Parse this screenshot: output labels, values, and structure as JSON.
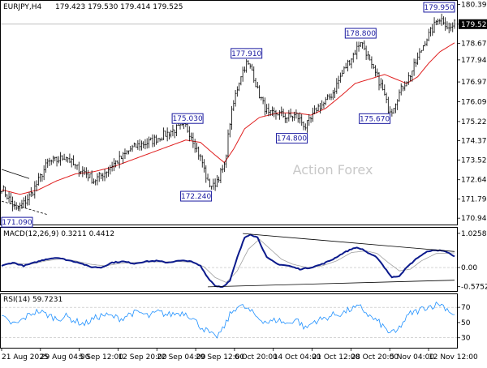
{
  "header": {
    "symbol": "EURJPY,H4",
    "ohlc": "179.423 179.530 179.414 179.525"
  },
  "watermark": "Action Forex",
  "colors": {
    "candle": "#000000",
    "ma": "#e02020",
    "macd_line": "#0b1a8c",
    "macd_signal": "#a0a0a0",
    "rsi": "#1e90ff",
    "trendline": "#000000",
    "annotation": "#1a1aa0",
    "watermark": "#c8c8c8"
  },
  "chart_data": [
    {
      "type": "candlestick",
      "panel": "price",
      "title": "EURJPY,H4",
      "y_ticks": [
        "180.395",
        "179.525",
        "178.670",
        "177.945",
        "176.970",
        "176.095",
        "175.220",
        "174.370",
        "173.520",
        "172.645",
        "171.795",
        "170.945"
      ],
      "ylim": [
        170.7,
        180.45
      ],
      "current_price": "179.525",
      "x_tick_labels": [
        "21 Aug 2025",
        "29 Aug 04:00",
        "5 Sep 12:00",
        "12 Sep 20:00",
        "22 Sep 04:00",
        "29 Sep 12:00",
        "6 Oct 20:00",
        "14 Oct 04:00",
        "21 Oct 12:00",
        "28 Oct 20:00",
        "5 Nov 04:00",
        "12 Nov 12:00"
      ],
      "price_anchors": [
        [
          0,
          172.3
        ],
        [
          4,
          171.8
        ],
        [
          8,
          171.3
        ],
        [
          12,
          171.6
        ],
        [
          16,
          172.0
        ],
        [
          20,
          172.6
        ],
        [
          25,
          173.4
        ],
        [
          30,
          173.5
        ],
        [
          35,
          173.7
        ],
        [
          40,
          173.2
        ],
        [
          45,
          173.0
        ],
        [
          50,
          172.6
        ],
        [
          55,
          172.9
        ],
        [
          60,
          173.3
        ],
        [
          65,
          173.6
        ],
        [
          70,
          174.0
        ],
        [
          75,
          174.2
        ],
        [
          80,
          174.3
        ],
        [
          85,
          174.5
        ],
        [
          90,
          174.7
        ],
        [
          95,
          174.9
        ],
        [
          100,
          175.0
        ],
        [
          103,
          174.6
        ],
        [
          106,
          174.0
        ],
        [
          109,
          173.4
        ],
        [
          112,
          172.5
        ],
        [
          115,
          172.35
        ],
        [
          118,
          172.8
        ],
        [
          121,
          173.2
        ],
        [
          124,
          175.2
        ],
        [
          127,
          176.4
        ],
        [
          130,
          177.3
        ],
        [
          133,
          177.8
        ],
        [
          136,
          177.5
        ],
        [
          139,
          176.6
        ],
        [
          142,
          176.0
        ],
        [
          145,
          175.5
        ],
        [
          150,
          175.6
        ],
        [
          155,
          175.4
        ],
        [
          160,
          175.5
        ],
        [
          165,
          175.0
        ],
        [
          168,
          175.3
        ],
        [
          171,
          175.8
        ],
        [
          175,
          176.0
        ],
        [
          180,
          176.5
        ],
        [
          184,
          177.2
        ],
        [
          188,
          177.8
        ],
        [
          192,
          178.3
        ],
        [
          195,
          178.8
        ],
        [
          198,
          178.3
        ],
        [
          201,
          177.6
        ],
        [
          204,
          177.2
        ],
        [
          207,
          176.6
        ],
        [
          210,
          175.8
        ],
        [
          212,
          175.75
        ],
        [
          215,
          176.3
        ],
        [
          218,
          176.8
        ],
        [
          222,
          177.3
        ],
        [
          226,
          178.0
        ],
        [
          230,
          178.8
        ],
        [
          234,
          179.3
        ],
        [
          237,
          179.8
        ],
        [
          240,
          179.7
        ],
        [
          243,
          179.3
        ],
        [
          246,
          179.525
        ]
      ],
      "ma_anchors": [
        [
          0,
          172.2
        ],
        [
          10,
          172.0
        ],
        [
          20,
          172.2
        ],
        [
          30,
          172.6
        ],
        [
          40,
          172.9
        ],
        [
          50,
          173.0
        ],
        [
          60,
          173.2
        ],
        [
          70,
          173.5
        ],
        [
          80,
          173.8
        ],
        [
          90,
          174.1
        ],
        [
          100,
          174.4
        ],
        [
          108,
          174.3
        ],
        [
          115,
          173.8
        ],
        [
          121,
          173.4
        ],
        [
          126,
          174.0
        ],
        [
          132,
          174.9
        ],
        [
          140,
          175.4
        ],
        [
          150,
          175.6
        ],
        [
          160,
          175.6
        ],
        [
          168,
          175.5
        ],
        [
          176,
          175.8
        ],
        [
          185,
          176.4
        ],
        [
          192,
          176.9
        ],
        [
          200,
          177.1
        ],
        [
          208,
          177.3
        ],
        [
          214,
          177.1
        ],
        [
          220,
          176.9
        ],
        [
          226,
          177.2
        ],
        [
          232,
          177.8
        ],
        [
          238,
          178.3
        ],
        [
          246,
          178.7
        ]
      ],
      "annotations": [
        {
          "label": "171.090",
          "i": 5,
          "value": 171.09,
          "side": "below"
        },
        {
          "label": "175.030",
          "i": 101,
          "value": 175.03,
          "side": "above"
        },
        {
          "label": "172.240",
          "i": 114,
          "value": 172.24,
          "side": "below"
        },
        {
          "label": "177.910",
          "i": 133,
          "value": 177.91,
          "side": "above"
        },
        {
          "label": "174.800",
          "i": 166,
          "value": 174.8,
          "side": "below"
        },
        {
          "label": "178.800",
          "i": 195,
          "value": 178.8,
          "side": "above"
        },
        {
          "label": "175.670",
          "i": 211,
          "value": 175.67,
          "side": "below"
        },
        {
          "label": "179.950",
          "i": 238,
          "value": 179.95,
          "side": "above"
        }
      ],
      "trendlines": [
        {
          "from": [
            0,
            173.1
          ],
          "to": [
            15,
            172.7
          ]
        },
        {
          "from": [
            0,
            171.7
          ],
          "to": [
            25,
            171.1
          ]
        }
      ]
    },
    {
      "type": "line",
      "panel": "macd",
      "title": "MACD(12,26,9) 0.3211 0.4412",
      "y_ticks": [
        "1.0258",
        "0.00",
        "-0.5752"
      ],
      "ylim": [
        -0.68,
        1.12
      ],
      "macd_anchors": [
        [
          0,
          0.05
        ],
        [
          6,
          0.15
        ],
        [
          12,
          0.05
        ],
        [
          18,
          0.15
        ],
        [
          24,
          0.25
        ],
        [
          30,
          0.3
        ],
        [
          36,
          0.22
        ],
        [
          42,
          0.15
        ],
        [
          48,
          0.02
        ],
        [
          54,
          0.0
        ],
        [
          60,
          0.15
        ],
        [
          66,
          0.18
        ],
        [
          72,
          0.12
        ],
        [
          78,
          0.18
        ],
        [
          84,
          0.2
        ],
        [
          90,
          0.15
        ],
        [
          96,
          0.2
        ],
        [
          102,
          0.2
        ],
        [
          108,
          0.05
        ],
        [
          112,
          -0.3
        ],
        [
          116,
          -0.55
        ],
        [
          120,
          -0.58
        ],
        [
          124,
          -0.4
        ],
        [
          128,
          0.3
        ],
        [
          132,
          0.9
        ],
        [
          135,
          1.0
        ],
        [
          139,
          0.9
        ],
        [
          144,
          0.3
        ],
        [
          150,
          0.1
        ],
        [
          156,
          0.05
        ],
        [
          162,
          -0.05
        ],
        [
          168,
          0.0
        ],
        [
          174,
          0.1
        ],
        [
          180,
          0.25
        ],
        [
          186,
          0.45
        ],
        [
          192,
          0.6
        ],
        [
          196,
          0.55
        ],
        [
          200,
          0.4
        ],
        [
          204,
          0.3
        ],
        [
          208,
          0.0
        ],
        [
          212,
          -0.3
        ],
        [
          216,
          -0.25
        ],
        [
          220,
          0.0
        ],
        [
          226,
          0.3
        ],
        [
          232,
          0.5
        ],
        [
          238,
          0.52
        ],
        [
          243,
          0.45
        ],
        [
          246,
          0.32
        ]
      ],
      "signal_anchors": [
        [
          0,
          0.08
        ],
        [
          8,
          0.12
        ],
        [
          16,
          0.1
        ],
        [
          24,
          0.2
        ],
        [
          32,
          0.26
        ],
        [
          40,
          0.2
        ],
        [
          48,
          0.1
        ],
        [
          56,
          0.05
        ],
        [
          64,
          0.12
        ],
        [
          72,
          0.15
        ],
        [
          80,
          0.17
        ],
        [
          88,
          0.17
        ],
        [
          96,
          0.18
        ],
        [
          104,
          0.16
        ],
        [
          110,
          0.02
        ],
        [
          116,
          -0.3
        ],
        [
          122,
          -0.45
        ],
        [
          128,
          -0.1
        ],
        [
          134,
          0.55
        ],
        [
          140,
          0.85
        ],
        [
          146,
          0.55
        ],
        [
          152,
          0.25
        ],
        [
          158,
          0.1
        ],
        [
          166,
          0.0
        ],
        [
          174,
          0.05
        ],
        [
          182,
          0.2
        ],
        [
          190,
          0.45
        ],
        [
          198,
          0.5
        ],
        [
          204,
          0.42
        ],
        [
          210,
          0.15
        ],
        [
          216,
          -0.1
        ],
        [
          222,
          -0.05
        ],
        [
          228,
          0.2
        ],
        [
          236,
          0.42
        ],
        [
          246,
          0.44
        ]
      ],
      "trendlines": [
        {
          "from": [
            131,
            1.02
          ],
          "to": [
            246,
            0.48
          ]
        },
        {
          "from": [
            112,
            -0.58
          ],
          "to": [
            246,
            -0.38
          ]
        }
      ]
    },
    {
      "type": "line",
      "panel": "rsi",
      "title": "RSI(14) 59.7231",
      "y_ticks": [
        "70",
        "50",
        "30"
      ],
      "ylim": [
        18,
        84
      ],
      "levels": [
        70,
        30
      ],
      "rsi_anchors": [
        [
          0,
          58
        ],
        [
          4,
          50
        ],
        [
          8,
          48
        ],
        [
          12,
          55
        ],
        [
          16,
          62
        ],
        [
          20,
          65
        ],
        [
          25,
          60
        ],
        [
          30,
          55
        ],
        [
          35,
          58
        ],
        [
          40,
          52
        ],
        [
          45,
          48
        ],
        [
          50,
          55
        ],
        [
          55,
          60
        ],
        [
          60,
          58
        ],
        [
          65,
          55
        ],
        [
          70,
          62
        ],
        [
          75,
          63
        ],
        [
          80,
          58
        ],
        [
          85,
          64
        ],
        [
          90,
          60
        ],
        [
          95,
          62
        ],
        [
          100,
          63
        ],
        [
          104,
          55
        ],
        [
          108,
          45
        ],
        [
          112,
          38
        ],
        [
          116,
          30
        ],
        [
          120,
          40
        ],
        [
          124,
          60
        ],
        [
          128,
          72
        ],
        [
          132,
          70
        ],
        [
          136,
          63
        ],
        [
          140,
          55
        ],
        [
          145,
          50
        ],
        [
          150,
          54
        ],
        [
          155,
          48
        ],
        [
          160,
          55
        ],
        [
          165,
          42
        ],
        [
          170,
          52
        ],
        [
          175,
          55
        ],
        [
          180,
          60
        ],
        [
          185,
          62
        ],
        [
          190,
          68
        ],
        [
          195,
          70
        ],
        [
          200,
          58
        ],
        [
          205,
          50
        ],
        [
          210,
          38
        ],
        [
          214,
          36
        ],
        [
          218,
          50
        ],
        [
          222,
          62
        ],
        [
          226,
          65
        ],
        [
          230,
          70
        ],
        [
          234,
          72
        ],
        [
          238,
          75
        ],
        [
          242,
          68
        ],
        [
          246,
          59.7
        ]
      ]
    }
  ]
}
